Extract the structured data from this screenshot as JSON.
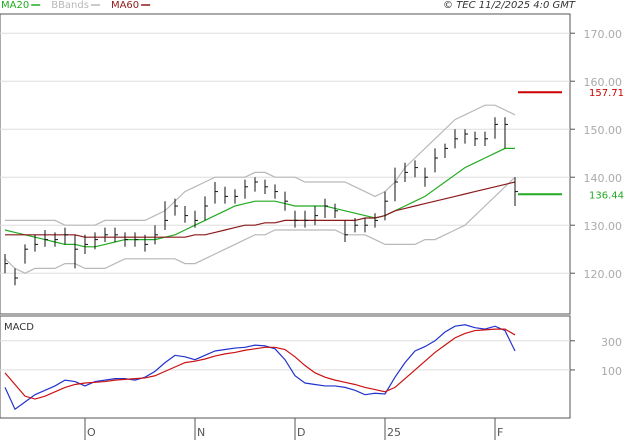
{
  "chart_data": [
    {
      "type": "ohlc",
      "source": "© TEC 11/2/2025 4:0 GMT",
      "ylim": [
        111.5,
        174
      ],
      "yticks": [
        {
          "value": 120,
          "label": "120.00"
        },
        {
          "value": 130,
          "label": "130.00"
        },
        {
          "value": 140,
          "label": "140.00"
        },
        {
          "value": 150,
          "label": "150.00"
        },
        {
          "value": 160,
          "label": "160.00"
        },
        {
          "value": 170,
          "label": "170.00"
        }
      ],
      "grid": true,
      "bar_color": "#111111",
      "high": [
        124,
        121,
        126,
        128,
        129,
        128.5,
        129.5,
        128,
        128,
        128.5,
        129.5,
        129.5,
        128.5,
        128.5,
        128,
        130,
        135,
        135.5,
        134,
        133,
        136,
        139,
        138,
        137.5,
        139.5,
        140,
        139.5,
        138.5,
        137,
        133,
        133,
        134,
        135.5,
        134.5,
        131,
        131.5,
        131.5,
        132.5,
        137,
        142,
        143,
        143.5,
        142,
        146,
        147,
        150,
        150,
        149.5,
        149.5,
        152.5,
        152.5,
        140
      ],
      "low": [
        120,
        117.5,
        122,
        124.5,
        125.5,
        125.5,
        126,
        121,
        124,
        125,
        126.5,
        126.5,
        125.5,
        125.5,
        124.5,
        126,
        129,
        132,
        130.5,
        129.5,
        131,
        134.5,
        134.5,
        134.5,
        135.5,
        137,
        136.5,
        135.5,
        133,
        129.5,
        129.5,
        130,
        131.5,
        131.5,
        126.5,
        128.5,
        128.5,
        129.5,
        131,
        135,
        139,
        140,
        138,
        141,
        144,
        146,
        147,
        146.5,
        146.5,
        148,
        146,
        134
      ],
      "close": [
        122,
        119,
        125,
        126,
        127,
        127,
        128,
        125,
        126,
        127,
        128,
        128,
        127,
        127,
        126,
        128,
        131,
        134,
        132,
        131,
        134,
        137,
        136,
        136,
        138,
        139,
        138,
        137,
        135,
        131,
        131,
        132,
        134,
        133,
        128,
        130,
        130,
        131,
        135,
        139,
        141,
        142,
        140,
        144,
        146,
        148,
        149,
        148,
        148,
        151,
        151,
        137
      ],
      "series": [
        {
          "name": "MA20",
          "color": "#22aa22",
          "values": [
            129,
            128.5,
            128,
            127.5,
            127,
            126.5,
            126,
            126,
            125.5,
            125.5,
            126,
            126.5,
            127,
            127,
            127,
            127,
            127.5,
            128,
            129,
            130,
            131,
            132,
            133,
            134,
            134.5,
            135,
            135,
            135,
            134.5,
            134,
            134,
            134,
            134,
            133.5,
            133,
            132.5,
            132,
            131.5,
            132,
            133,
            134,
            135,
            136,
            137.5,
            139,
            140.5,
            142,
            143,
            144,
            145,
            146,
            146
          ]
        },
        {
          "name": "BBands",
          "color": "#b8b8b8",
          "upper": [
            131,
            131,
            131,
            131,
            131,
            131,
            130,
            130,
            130,
            130,
            131,
            131,
            131,
            131,
            131,
            132,
            133,
            135,
            137,
            138,
            139,
            140,
            140,
            140,
            140,
            141,
            141,
            140,
            140,
            140,
            139,
            139,
            139,
            139,
            139,
            138,
            137,
            136,
            137,
            139,
            142,
            144,
            146,
            148,
            150,
            152,
            153,
            154,
            155,
            155,
            154,
            153
          ],
          "lower": [
            123,
            121,
            120,
            121,
            121,
            121,
            122,
            122,
            121,
            121,
            121,
            122,
            123,
            123,
            123,
            123,
            123,
            123,
            122,
            122,
            123,
            124,
            125,
            126,
            127,
            128,
            128,
            129,
            129,
            129,
            129,
            129,
            129,
            129,
            128,
            128,
            128,
            127,
            126,
            126,
            126,
            126,
            127,
            127,
            128,
            129,
            130,
            132,
            134,
            136,
            138,
            140
          ]
        },
        {
          "name": "MA60",
          "color": "#8b1a1a",
          "values": [
            128,
            128,
            128,
            128,
            128,
            128,
            128,
            128,
            127.5,
            127.5,
            127.5,
            127.5,
            127.5,
            127.5,
            127.5,
            127.5,
            127.5,
            127.5,
            127.5,
            128,
            128,
            128.5,
            129,
            129.5,
            130,
            130,
            130.5,
            130.5,
            131,
            131,
            131,
            131,
            131,
            131,
            131,
            131,
            131.5,
            131.5,
            132,
            133,
            133.5,
            134,
            134.5,
            135,
            135.5,
            136,
            136.5,
            137,
            137.5,
            138,
            138.5,
            139
          ]
        }
      ],
      "markers": [
        {
          "value": 157.71,
          "color": "#cc0000"
        },
        {
          "value": 136.44,
          "color": "#22aa22"
        }
      ]
    },
    {
      "type": "line",
      "title": "MACD",
      "ylim": [
        -230,
        470
      ],
      "yticks": [
        100,
        300
      ],
      "grid": true,
      "categories": [
        null,
        null,
        null,
        null,
        null,
        null,
        null,
        null,
        "O",
        null,
        null,
        null,
        null,
        null,
        null,
        null,
        null,
        null,
        null,
        "N",
        null,
        null,
        null,
        null,
        null,
        null,
        null,
        null,
        null,
        "D",
        null,
        null,
        null,
        null,
        null,
        null,
        null,
        null,
        "25",
        null,
        null,
        null,
        null,
        null,
        null,
        null,
        null,
        null,
        null,
        "F",
        null,
        null
      ],
      "series": [
        {
          "color": "#2233cc",
          "values": [
            -20,
            -170,
            -120,
            -70,
            -40,
            -10,
            30,
            20,
            -10,
            20,
            30,
            40,
            40,
            30,
            50,
            90,
            150,
            200,
            190,
            170,
            200,
            230,
            240,
            250,
            255,
            270,
            265,
            245,
            170,
            60,
            10,
            0,
            -10,
            -10,
            -20,
            -40,
            -70,
            -60,
            -65,
            50,
            150,
            230,
            260,
            300,
            360,
            400,
            410,
            390,
            380,
            400,
            370,
            230
          ]
        },
        {
          "color": "#cc1111",
          "values": [
            80,
            0,
            -80,
            -100,
            -80,
            -50,
            -20,
            0,
            10,
            15,
            20,
            30,
            35,
            40,
            45,
            60,
            90,
            120,
            150,
            160,
            175,
            195,
            210,
            220,
            235,
            245,
            255,
            255,
            240,
            190,
            130,
            80,
            50,
            30,
            15,
            0,
            -20,
            -35,
            -50,
            -20,
            40,
            100,
            160,
            220,
            270,
            320,
            350,
            370,
            375,
            380,
            380,
            340
          ]
        }
      ]
    }
  ]
}
